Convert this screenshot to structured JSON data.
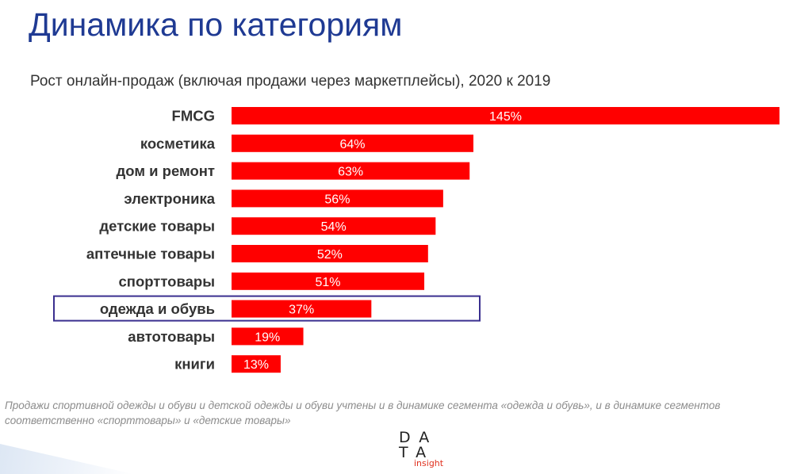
{
  "slide": {
    "title": "Динамика по категориям",
    "footnote": "Продажи спортивной одежды и обуви и детской одежды и обуви учтены и в динамике сегмента «одежда и обувь», и в динамике сегментов соответственно «спорттовары» и «детские товары»"
  },
  "logo": {
    "row1": "DA",
    "row2": "TA",
    "sub": "insight"
  },
  "chart_data": {
    "type": "bar",
    "orientation": "horizontal",
    "title": "Рост онлайн-продаж (включая продажи через маркетплейсы), 2020 к 2019",
    "categories": [
      "FMCG",
      "косметика",
      "дом и ремонт",
      "электроника",
      "детские товары",
      "аптечные товары",
      "спорттовары",
      "одежда и обувь",
      "автотовары",
      "книги"
    ],
    "values": [
      145,
      64,
      63,
      56,
      54,
      52,
      51,
      37,
      19,
      13
    ],
    "value_labels": [
      "145%",
      "64%",
      "63%",
      "56%",
      "54%",
      "52%",
      "51%",
      "37%",
      "19%",
      "13%"
    ],
    "unit": "%",
    "highlight": "одежда и обувь",
    "bar_color": "#ff0000",
    "highlight_color": "#3a2f8f",
    "xlim": [
      0,
      145
    ]
  }
}
